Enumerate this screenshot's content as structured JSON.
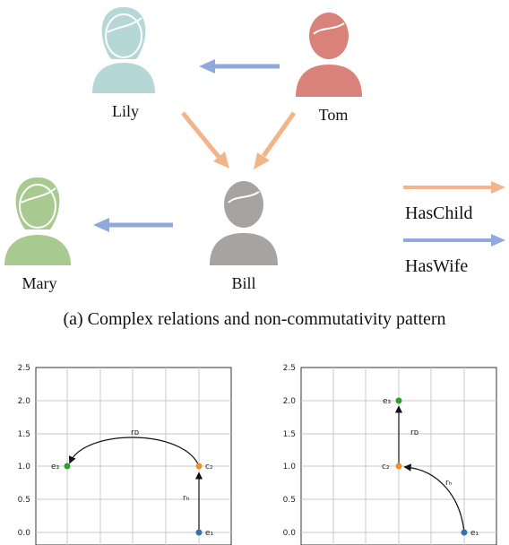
{
  "people": [
    {
      "name": "Lily",
      "color": "#b5d8d6"
    },
    {
      "name": "Tom",
      "color": "#d9827a"
    },
    {
      "name": "Mary",
      "color": "#a8c98f"
    },
    {
      "name": "Bill",
      "color": "#a6a3a0"
    }
  ],
  "legend": [
    {
      "label": "HasChild",
      "color": "#f2b48a"
    },
    {
      "label": "HasWife",
      "color": "#8fa9dc"
    }
  ],
  "caption": "(a)  Complex relations and non-commutativity pattern",
  "plots": [
    {
      "y_ticks": [
        "2.5",
        "2.0",
        "1.5",
        "1.0",
        "0.5",
        "0.0"
      ],
      "points": [
        {
          "label": "e₁",
          "color": "#2f73b5"
        },
        {
          "label": "c₂",
          "color": "#f28e2b"
        },
        {
          "label": "e₃",
          "color": "#2ca02c"
        }
      ],
      "relations": [
        "rᴅ",
        "rₕ"
      ]
    },
    {
      "y_ticks": [
        "2.5",
        "2.0",
        "1.5",
        "1.0",
        "0.5",
        "0.0"
      ],
      "points": [
        {
          "label": "e₁",
          "color": "#2f73b5"
        },
        {
          "label": "c₂",
          "color": "#f28e2b"
        },
        {
          "label": "e₃",
          "color": "#2ca02c"
        }
      ],
      "relations": [
        "rₕ",
        "rᴅ"
      ]
    }
  ]
}
